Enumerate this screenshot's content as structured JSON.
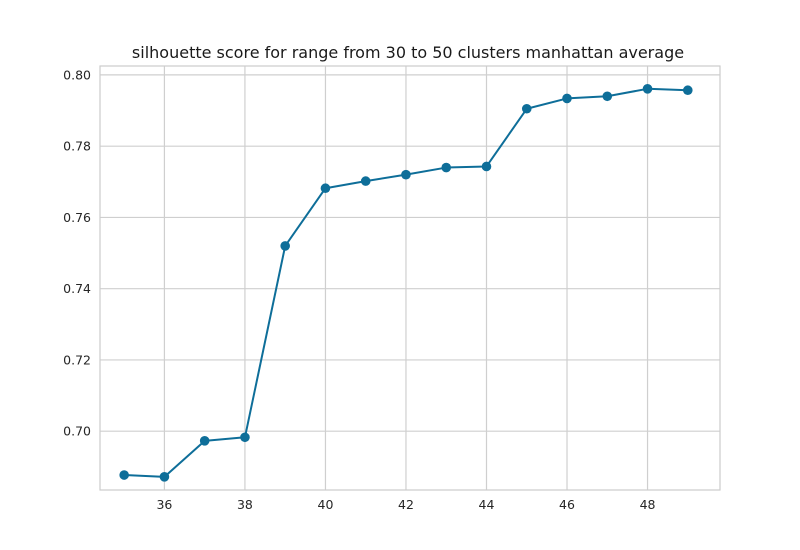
{
  "chart_data": {
    "type": "line",
    "title": "silhouette score for range from 30 to 50 clusters manhattan average",
    "xlabel": "",
    "ylabel": "",
    "xlim": [
      34.4,
      49.8
    ],
    "ylim": [
      0.6835,
      0.8025
    ],
    "x_ticks": [
      36,
      38,
      40,
      42,
      44,
      46,
      48
    ],
    "y_ticks": [
      0.7,
      0.72,
      0.74,
      0.76,
      0.78,
      0.8
    ],
    "x_tick_labels": [
      "36",
      "38",
      "40",
      "42",
      "44",
      "46",
      "48"
    ],
    "y_tick_labels": [
      "0.70",
      "0.72",
      "0.74",
      "0.76",
      "0.78",
      "0.80"
    ],
    "grid": true,
    "series": [
      {
        "x": [
          35,
          36,
          37,
          38,
          39,
          40,
          41,
          42,
          43,
          44,
          45,
          46,
          47,
          48,
          49
        ],
        "values": [
          0.6877,
          0.6872,
          0.6973,
          0.6983,
          0.752,
          0.7682,
          0.7702,
          0.772,
          0.774,
          0.7743,
          0.7905,
          0.7934,
          0.794,
          0.7961,
          0.7957
        ],
        "color": "#0e6e99"
      }
    ]
  },
  "colors": {
    "line": "#0e6e99",
    "grid": "#cfcfcf",
    "spine": "#cccccc",
    "text": "#262626"
  }
}
